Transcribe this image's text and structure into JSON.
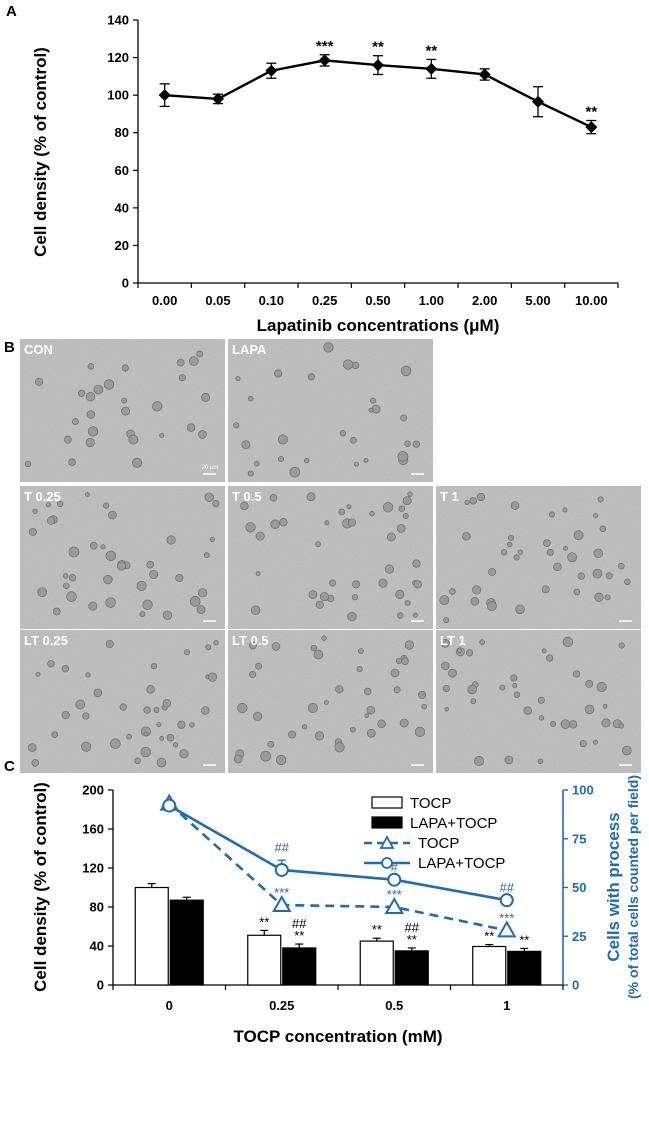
{
  "panels": {
    "a": "A",
    "b": "B",
    "c": "C"
  },
  "chart_data": [
    {
      "type": "line",
      "panel": "A",
      "xlabel": "Lapatinib concentrations (μM)",
      "ylabel": "Cell density (% of control)",
      "ylim": [
        0,
        140
      ],
      "yticks": [
        "0",
        "20",
        "40",
        "60",
        "80",
        "100",
        "120",
        "140"
      ],
      "categories": [
        "0.00",
        "0.05",
        "0.10",
        "0.25",
        "0.50",
        "1.00",
        "2.00",
        "5.00",
        "10.00"
      ],
      "series": [
        {
          "values": [
            100,
            98,
            113,
            118.5,
            116,
            114,
            111,
            96.5,
            83
          ],
          "errors": [
            6,
            2.5,
            4,
            3,
            5,
            5,
            3,
            8,
            3.5
          ],
          "annotations": [
            "",
            "",
            "",
            "***",
            "**",
            "**",
            "",
            "",
            "**"
          ]
        }
      ],
      "grid": false,
      "color": "#000000"
    },
    {
      "type": "bar+line",
      "panel": "C",
      "xlabel": "TOCP concentration (mM)",
      "ylabel": "Cell density (% of control)",
      "y2label_line1": "Cells with process",
      "y2label_line2": "(% of total cells counted per field)",
      "ylim": [
        0,
        200
      ],
      "yticks": [
        "0",
        "40",
        "80",
        "120",
        "160",
        "200"
      ],
      "y2lim": [
        0,
        100
      ],
      "y2ticks": [
        "0",
        "25",
        "50",
        "75",
        "100"
      ],
      "categories": [
        "0",
        "0.25",
        "0.5",
        "1"
      ],
      "bars": [
        {
          "name": "TOCP",
          "values": [
            100,
            51,
            45,
            39.5
          ],
          "errors": [
            4,
            5,
            3,
            2
          ],
          "annotations": [
            "",
            "**",
            "**",
            "**"
          ],
          "fill": "#ffffff"
        },
        {
          "name": "LAPA+TOCP",
          "values": [
            87,
            38,
            35,
            34.5
          ],
          "errors": [
            3,
            4,
            3,
            3
          ],
          "annotations": [
            "",
            "##\n**",
            "##\n**",
            "**"
          ],
          "fill": "#000000"
        }
      ],
      "lines": [
        {
          "name": "TOCP",
          "values": [
            93,
            41,
            40,
            28
          ],
          "errors": [
            0,
            0,
            0,
            0
          ],
          "annotations": [
            "",
            "***",
            "***",
            "***"
          ],
          "dash": true,
          "marker": "triangle"
        },
        {
          "name": "LAPA+TOCP",
          "values": [
            92,
            59,
            54,
            43.5
          ],
          "errors": [
            0,
            5,
            0,
            0
          ],
          "annotations": [
            "",
            "##",
            "#",
            "##"
          ],
          "dash": false,
          "marker": "circle"
        }
      ],
      "line_color": "#1e6bb8",
      "legend_position": "top-right"
    }
  ],
  "micrographs": {
    "labels": [
      "CON",
      "LAPA",
      "T 0.25",
      "T 0.5",
      "T 1",
      "LT 0.25",
      "LT 0.5",
      "LT 1"
    ],
    "scale_bar": "20 μm"
  }
}
